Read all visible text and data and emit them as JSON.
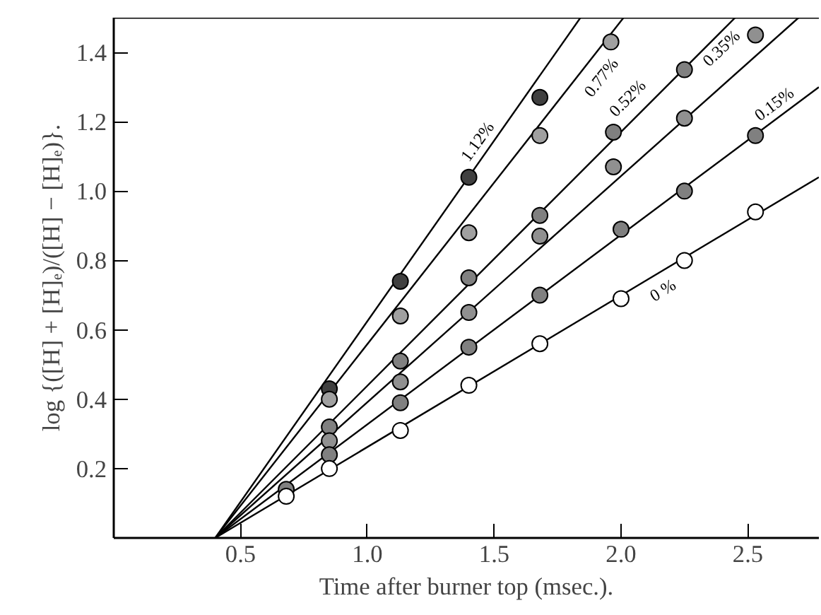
{
  "chart_data": {
    "type": "scatter",
    "xlabel": "Time after burner top (msec.).",
    "ylabel": "log {([H] + [H]ₑ)/([H] − [H]ₑ)}.",
    "xlim": [
      0,
      2.78
    ],
    "ylim": [
      0,
      1.5
    ],
    "xticks": [
      0.5,
      {
        "value": 1,
        "label": "1.0"
      },
      1.5,
      {
        "value": 2,
        "label": "2.0"
      },
      2.5
    ],
    "yticks": [
      0.2,
      0.4,
      0.6,
      0.8,
      {
        "value": 1,
        "label": "1.0"
      },
      1.2,
      1.4
    ],
    "grid": false,
    "marker": "circle",
    "series": [
      {
        "name": "0 %",
        "color": "#ffffff",
        "x": [
          0.68,
          0.85,
          1.13,
          1.4,
          1.68,
          2.0,
          2.25,
          2.53
        ],
        "values": [
          0.12,
          0.2,
          0.31,
          0.44,
          0.56,
          0.69,
          0.8,
          0.94
        ]
      },
      {
        "name": "0.15%",
        "color": "#808080",
        "x": [
          0.68,
          0.85,
          1.13,
          1.4,
          1.68,
          2.0,
          2.25,
          2.53
        ],
        "values": [
          0.14,
          0.24,
          0.39,
          0.55,
          0.7,
          0.89,
          1.0,
          1.16
        ]
      },
      {
        "name": "0.35%",
        "color": "#909090",
        "x": [
          0.85,
          1.13,
          1.4,
          1.68,
          1.97,
          2.25,
          2.53
        ],
        "values": [
          0.28,
          0.45,
          0.65,
          0.87,
          1.07,
          1.21,
          1.45
        ]
      },
      {
        "name": "0.52%",
        "color": "#808080",
        "x": [
          0.85,
          1.13,
          1.4,
          1.68,
          1.97,
          2.25
        ],
        "values": [
          0.32,
          0.51,
          0.75,
          0.93,
          1.17,
          1.35
        ]
      },
      {
        "name": "0.77%",
        "color": "#a0a0a0",
        "x": [
          0.85,
          1.13,
          1.4,
          1.68,
          1.96
        ],
        "values": [
          0.4,
          0.64,
          0.88,
          1.16,
          1.43
        ]
      },
      {
        "name": "1.12%",
        "color": "#404040",
        "x": [
          0.85,
          1.13,
          1.4,
          1.68
        ],
        "values": [
          0.43,
          0.74,
          1.04,
          1.27
        ]
      },
      {
        "type": "line",
        "marker": "none",
        "color": "#000000",
        "x": [
          0.4,
          2.78
        ],
        "values": [
          0,
          1.04
        ]
      },
      {
        "type": "line",
        "marker": "none",
        "color": "#000000",
        "x": [
          0.4,
          2.78
        ],
        "values": [
          0,
          1.3
        ]
      },
      {
        "type": "line",
        "marker": "none",
        "color": "#000000",
        "x": [
          0.4,
          2.7
        ],
        "values": [
          0,
          1.5
        ]
      },
      {
        "type": "line",
        "marker": "none",
        "color": "#000000",
        "x": [
          0.4,
          2.45
        ],
        "values": [
          0,
          1.5
        ]
      },
      {
        "type": "line",
        "marker": "none",
        "color": "#000000",
        "x": [
          0.4,
          2.01
        ],
        "values": [
          0,
          1.5
        ]
      },
      {
        "type": "line",
        "marker": "none",
        "color": "#000000",
        "x": [
          0.4,
          1.84
        ],
        "values": [
          0,
          1.5
        ]
      }
    ]
  }
}
